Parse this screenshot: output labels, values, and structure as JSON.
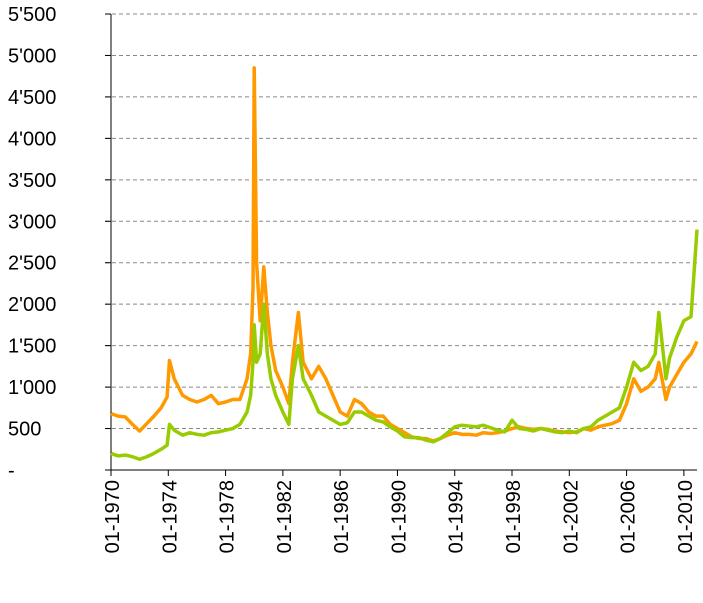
{
  "chart_data": {
    "type": "line",
    "x": [
      "01-1970",
      "07-1970",
      "01-1971",
      "07-1971",
      "01-1972",
      "07-1972",
      "01-1973",
      "07-1973",
      "12-1973",
      "02-1974",
      "06-1974",
      "01-1975",
      "07-1975",
      "01-1976",
      "07-1976",
      "01-1977",
      "07-1977",
      "01-1978",
      "07-1978",
      "01-1979",
      "07-1979",
      "10-1979",
      "12-1979",
      "01-1980",
      "03-1980",
      "06-1980",
      "09-1980",
      "12-1980",
      "03-1981",
      "07-1981",
      "01-1982",
      "06-1982",
      "09-1982",
      "02-1983",
      "06-1983",
      "01-1984",
      "07-1984",
      "01-1985",
      "07-1985",
      "01-1986",
      "07-1986",
      "01-1987",
      "07-1987",
      "01-1988",
      "07-1988",
      "01-1989",
      "07-1989",
      "01-1990",
      "07-1990",
      "01-1991",
      "07-1991",
      "01-1992",
      "07-1992",
      "01-1993",
      "07-1993",
      "01-1994",
      "07-1994",
      "01-1995",
      "07-1995",
      "01-1996",
      "07-1996",
      "01-1997",
      "07-1997",
      "01-1998",
      "07-1998",
      "01-1999",
      "07-1999",
      "01-2000",
      "07-2000",
      "01-2001",
      "07-2001",
      "01-2002",
      "07-2002",
      "01-2003",
      "07-2003",
      "01-2004",
      "07-2004",
      "01-2005",
      "07-2005",
      "01-2006",
      "07-2006",
      "01-2007",
      "07-2007",
      "01-2008",
      "04-2008",
      "10-2008",
      "01-2009",
      "07-2009",
      "01-2010",
      "07-2010",
      "12-2010"
    ],
    "series": [
      {
        "color": "#ff9900",
        "values": [
          680,
          650,
          640,
          550,
          470,
          560,
          650,
          750,
          880,
          1320,
          1100,
          900,
          850,
          820,
          850,
          900,
          800,
          820,
          850,
          850,
          1100,
          1400,
          2200,
          4850,
          2500,
          1800,
          2450,
          1900,
          1500,
          1200,
          1000,
          800,
          1300,
          1900,
          1300,
          1100,
          1250,
          1100,
          900,
          700,
          650,
          850,
          800,
          700,
          650,
          650,
          550,
          500,
          450,
          400,
          380,
          380,
          350,
          380,
          420,
          450,
          430,
          430,
          420,
          450,
          440,
          450,
          470,
          500,
          520,
          500,
          490,
          500,
          490,
          470,
          460,
          450,
          460,
          500,
          480,
          520,
          540,
          560,
          600,
          800,
          1100,
          950,
          1000,
          1100,
          1300,
          850,
          1000,
          1150,
          1300,
          1400,
          1550
        ]
      },
      {
        "color": "#99cc00",
        "values": [
          200,
          170,
          180,
          160,
          130,
          160,
          200,
          250,
          300,
          550,
          480,
          420,
          450,
          430,
          420,
          450,
          460,
          480,
          500,
          550,
          700,
          900,
          1300,
          1750,
          1300,
          1400,
          2000,
          1400,
          1100,
          900,
          700,
          550,
          1100,
          1500,
          1100,
          900,
          700,
          650,
          600,
          550,
          570,
          700,
          700,
          650,
          600,
          580,
          520,
          470,
          400,
          390,
          390,
          360,
          340,
          380,
          450,
          520,
          540,
          530,
          520,
          540,
          510,
          480,
          460,
          600,
          500,
          490,
          470,
          500,
          480,
          460,
          450,
          470,
          450,
          500,
          520,
          600,
          650,
          700,
          750,
          1000,
          1300,
          1200,
          1250,
          1400,
          1900,
          1100,
          1350,
          1600,
          1800,
          1850,
          2900
        ]
      }
    ],
    "xlim": [
      "01-1970",
      "12-2010"
    ],
    "xticks": [
      "01-1970",
      "01-1974",
      "01-1978",
      "01-1982",
      "01-1986",
      "01-1990",
      "01-1994",
      "01-1998",
      "01-2002",
      "01-2006",
      "01-2010"
    ],
    "ylim": [
      0,
      5500
    ],
    "yticks": [
      {
        "value": 0,
        "label": "-"
      },
      500,
      {
        "value": 1000,
        "label": "1'000"
      },
      {
        "value": 1500,
        "label": "1'500"
      },
      {
        "value": 2000,
        "label": "2'000"
      },
      {
        "value": 2500,
        "label": "2'500"
      },
      {
        "value": 3000,
        "label": "3'000"
      },
      {
        "value": 3500,
        "label": "3'500"
      },
      {
        "value": 4000,
        "label": "4'000"
      },
      {
        "value": 4500,
        "label": "4'500"
      },
      {
        "value": 5000,
        "label": "5'000"
      },
      {
        "value": 5500,
        "label": "5'500"
      }
    ],
    "grid": true
  }
}
